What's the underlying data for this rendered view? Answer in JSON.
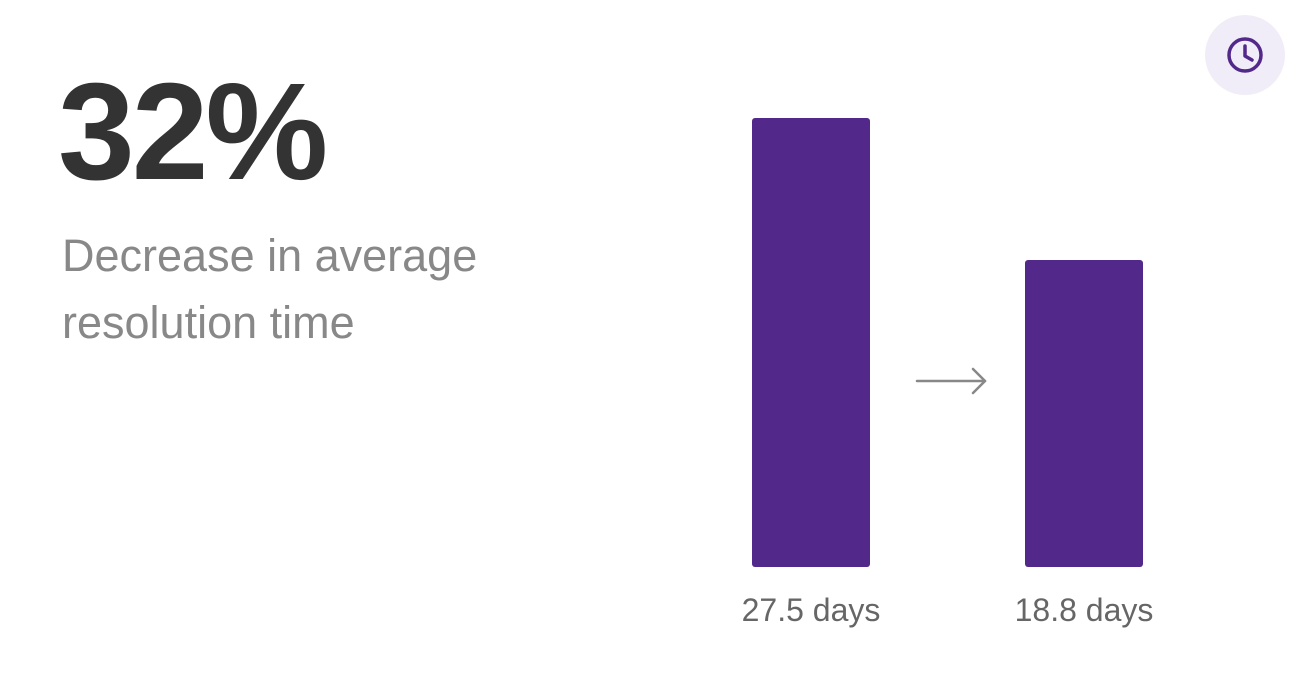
{
  "chart_data": {
    "type": "bar",
    "title": "32%",
    "subtitle": "Decrease in average resolution time",
    "values": [
      27.5,
      18.8
    ],
    "value_labels": [
      "27.5 days",
      "18.8 days"
    ],
    "color": "#52288a",
    "ylim": [
      0,
      27.5
    ]
  }
}
